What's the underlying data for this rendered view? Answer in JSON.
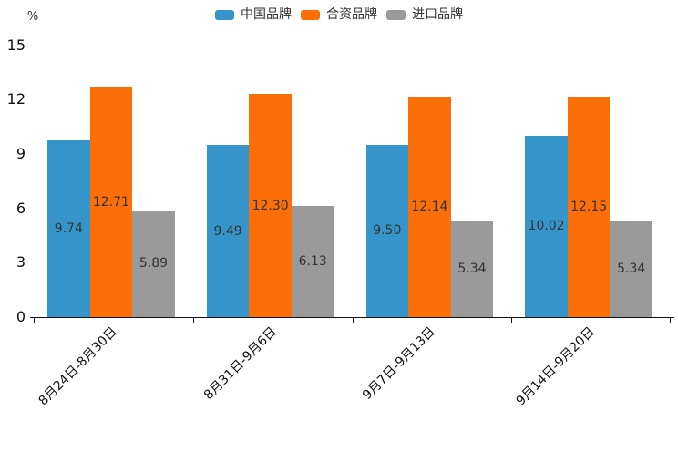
{
  "chart_data": {
    "type": "bar",
    "title": "",
    "unit_label": "%",
    "xlabel": "",
    "ylabel": "%",
    "ylim": [
      0,
      15
    ],
    "yticks": [
      0,
      3,
      6,
      9,
      12,
      15
    ],
    "grid": false,
    "legend_position": "top",
    "categories": [
      "8月24日-8月30日",
      "8月31日-9月6日",
      "9月7日-9月13日",
      "9月14日-9月20日"
    ],
    "series": [
      {
        "name": "中国品牌",
        "color": "#3595ca",
        "values": [
          9.74,
          9.49,
          9.5,
          10.02
        ],
        "labels": [
          "9.74",
          "9.49",
          "9.50",
          "10.02"
        ]
      },
      {
        "name": "合资品牌",
        "color": "#fc6e08",
        "values": [
          12.71,
          12.3,
          12.14,
          12.15
        ],
        "labels": [
          "12.71",
          "12.30",
          "12.14",
          "12.15"
        ]
      },
      {
        "name": "进口品牌",
        "color": "#9a9a9a",
        "values": [
          5.89,
          6.13,
          5.34,
          5.34
        ],
        "labels": [
          "5.89",
          "6.13",
          "5.34",
          "5.34"
        ]
      }
    ],
    "value_label_color": "#333333",
    "axis_color": "#111111"
  }
}
